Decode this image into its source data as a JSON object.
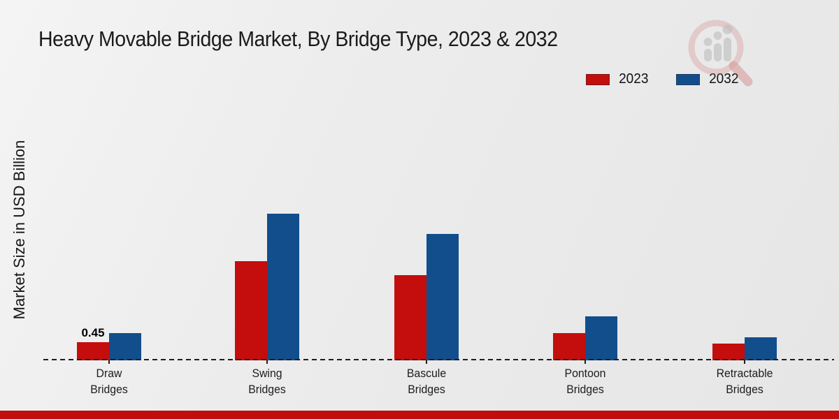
{
  "chart_data": {
    "type": "bar",
    "title": "Heavy Movable Bridge Market, By Bridge Type, 2023 & 2032",
    "xlabel": "",
    "ylabel": "Market Size in USD Billion",
    "categories": [
      "Draw\nBridges",
      "Swing\nBridges",
      "Bascule\nBridges",
      "Pontoon\nBridges",
      "Retractable\nBridges"
    ],
    "series": [
      {
        "name": "2023",
        "color": "#c40d0d",
        "values": [
          0.45,
          2.46,
          2.11,
          0.68,
          0.41
        ]
      },
      {
        "name": "2032",
        "color": "#124e8c",
        "values": [
          0.68,
          3.63,
          3.13,
          1.09,
          0.57
        ]
      }
    ],
    "annotations": [
      {
        "text": "0.45",
        "series_index": 0,
        "category_index": 0
      }
    ],
    "ylim": [
      0,
      4.2
    ],
    "grid": false,
    "legend_position": "top-right",
    "baseline_style": "dashed"
  },
  "branding": {
    "logo_name": "magnifier-bar-chart-logo",
    "accent_bar_color": "#c00d0d"
  }
}
